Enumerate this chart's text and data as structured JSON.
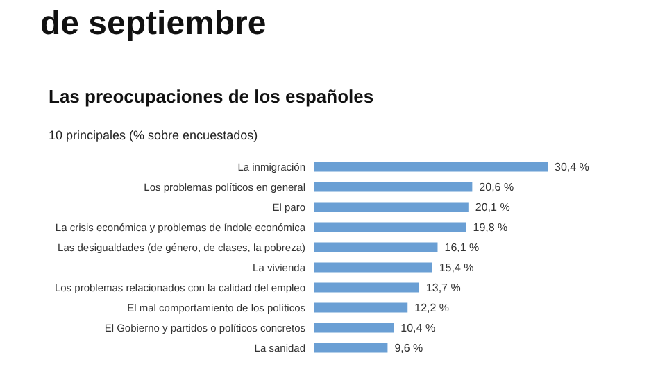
{
  "chart_data": {
    "type": "bar",
    "orientation": "horizontal",
    "title": "de septiembre",
    "subtitle": "Las preocupaciones de los españoles",
    "annotations": [
      "10 principales (% sobre encuestados)"
    ],
    "categories": [
      "La inmigración",
      "Los problemas políticos en general",
      "El paro",
      "La crisis económica y problemas de índole económica",
      "Las desigualdades (de género, de clases, la pobreza)",
      "La vivienda",
      "Los problemas relacionados con la calidad del empleo",
      "El mal comportamiento de los políticos",
      "El Gobierno y partidos o políticos concretos",
      "La sanidad"
    ],
    "values": [
      30.4,
      20.6,
      20.1,
      19.8,
      16.1,
      15.4,
      13.7,
      12.2,
      10.4,
      9.6
    ],
    "value_labels": [
      "30,4 %",
      "20,6 %",
      "20,1 %",
      "19,8 %",
      "16,1 %",
      "15,4 %",
      "13,7 %",
      "12,2 %",
      "10,4 %",
      "9,6 %"
    ],
    "color": "#6a9fd4"
  }
}
